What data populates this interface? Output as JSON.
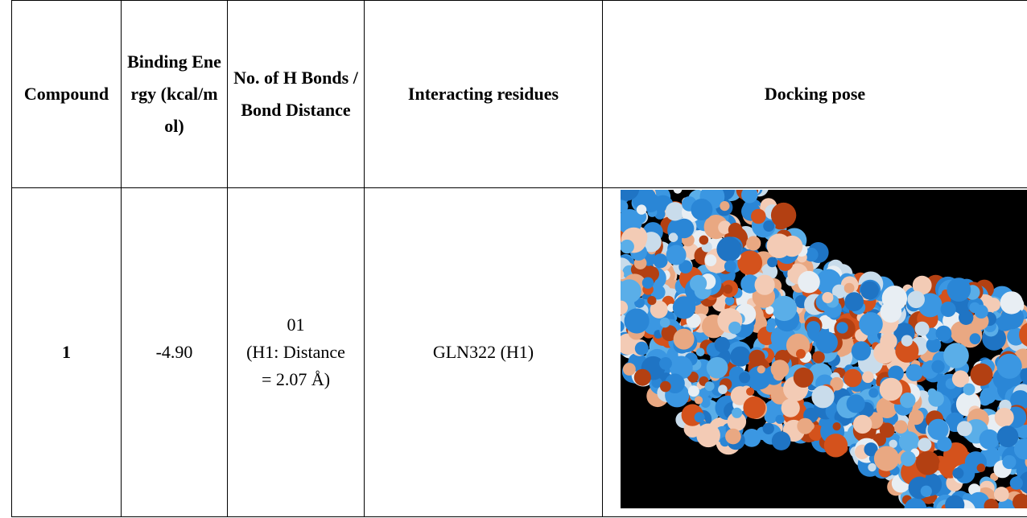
{
  "table": {
    "header": [
      "Compound",
      "Binding Energy (kcal/mol)",
      "No. of H Bonds / Bond Distance",
      "Interacting residues",
      "Docking pose"
    ],
    "rows": [
      [
        "1",
        "-4.90",
        [
          "01",
          "(H1: Distance = 2.07 Å)"
        ],
        "GLN322 (H1)"
      ]
    ]
  }
}
